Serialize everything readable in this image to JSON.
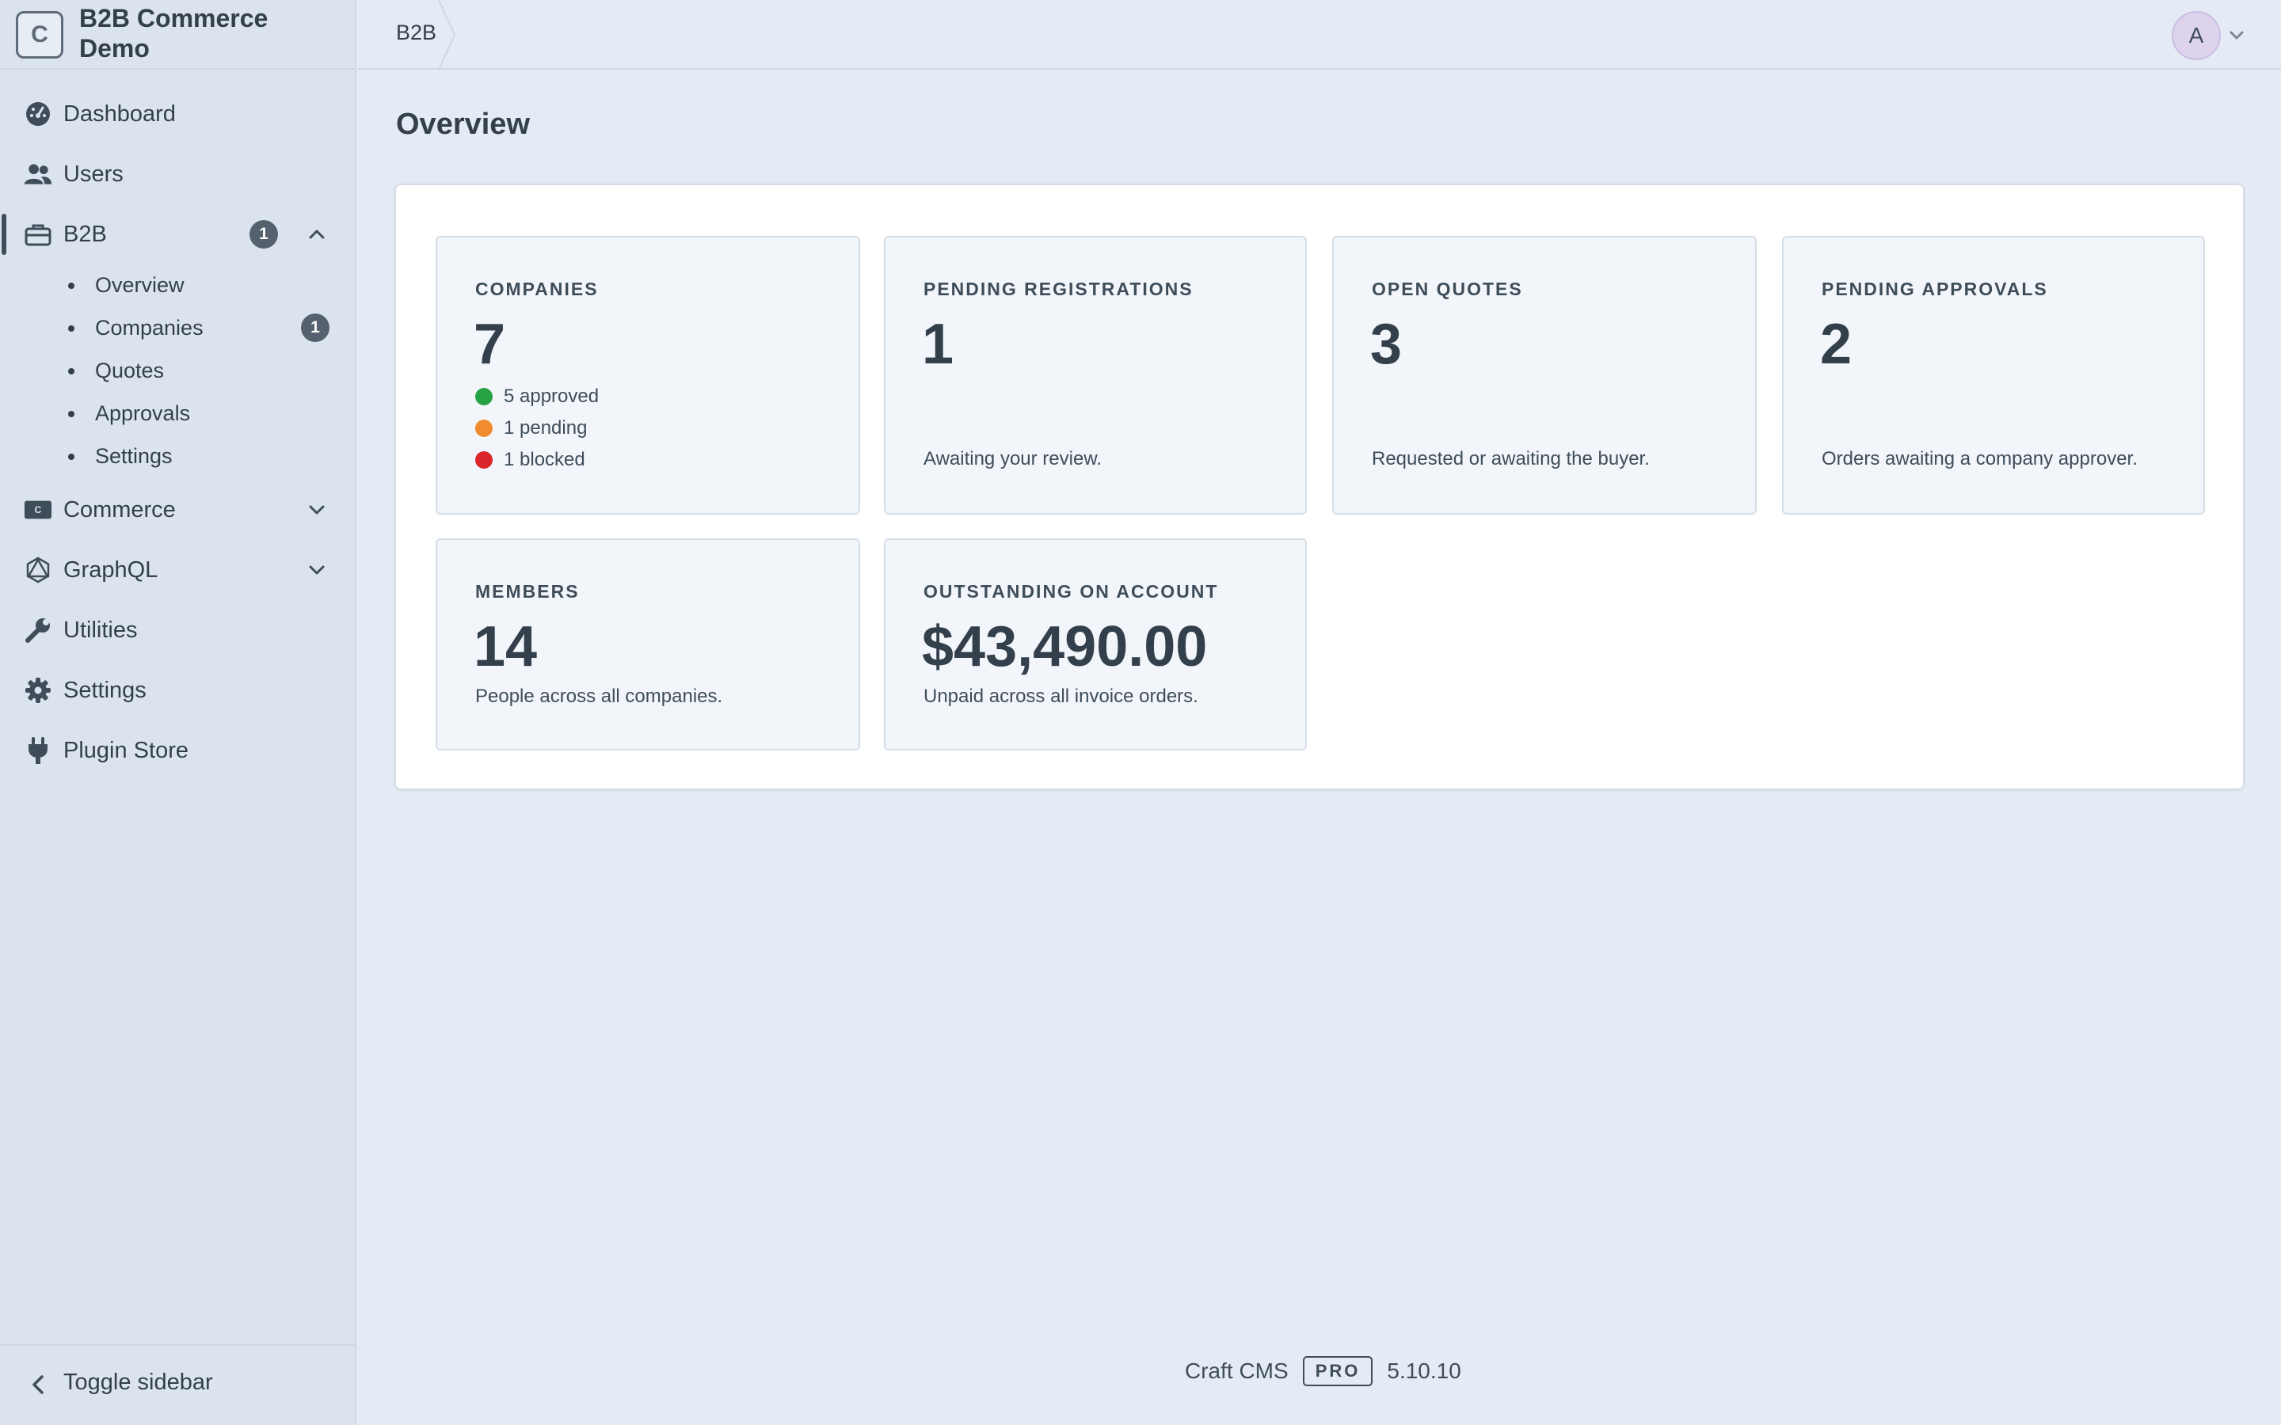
{
  "site": {
    "logo_letter": "C",
    "name": "B2B Commerce Demo"
  },
  "nav": {
    "items": [
      {
        "label": "Dashboard",
        "icon": "dashboard-icon"
      },
      {
        "label": "Users",
        "icon": "users-icon"
      },
      {
        "label": "B2B",
        "icon": "briefcase-icon",
        "badge": "1",
        "expanded": true
      },
      {
        "label": "Commerce",
        "icon": "commerce-icon",
        "expanded": false
      },
      {
        "label": "GraphQL",
        "icon": "graphql-icon",
        "expanded": false
      },
      {
        "label": "Utilities",
        "icon": "wrench-icon"
      },
      {
        "label": "Settings",
        "icon": "gear-icon"
      },
      {
        "label": "Plugin Store",
        "icon": "plug-icon"
      }
    ],
    "b2b_subitems": [
      {
        "label": "Overview"
      },
      {
        "label": "Companies",
        "badge": "1"
      },
      {
        "label": "Quotes"
      },
      {
        "label": "Approvals"
      },
      {
        "label": "Settings"
      }
    ],
    "toggle_sidebar": "Toggle sidebar"
  },
  "header": {
    "breadcrumb": "B2B",
    "avatar_initial": "A"
  },
  "page": {
    "title": "Overview"
  },
  "cards": {
    "companies": {
      "label": "COMPANIES",
      "value": "7",
      "statuses": [
        {
          "text": "5 approved",
          "color": "#27a245"
        },
        {
          "text": "1 pending",
          "color": "#f08b2f"
        },
        {
          "text": "1 blocked",
          "color": "#d9262c"
        }
      ]
    },
    "pending_registrations": {
      "label": "PENDING REGISTRATIONS",
      "value": "1",
      "desc": "Awaiting your review."
    },
    "open_quotes": {
      "label": "OPEN QUOTES",
      "value": "3",
      "desc": "Requested or awaiting the buyer."
    },
    "pending_approvals": {
      "label": "PENDING APPROVALS",
      "value": "2",
      "desc": "Orders awaiting a company approver."
    },
    "members": {
      "label": "MEMBERS",
      "value": "14",
      "desc": "People across all companies."
    },
    "outstanding": {
      "label": "OUTSTANDING ON ACCOUNT",
      "value": "$43,490.00",
      "desc": "Unpaid across all invoice orders."
    }
  },
  "footer": {
    "product": "Craft CMS",
    "edition": "PRO",
    "version": "5.10.10"
  }
}
